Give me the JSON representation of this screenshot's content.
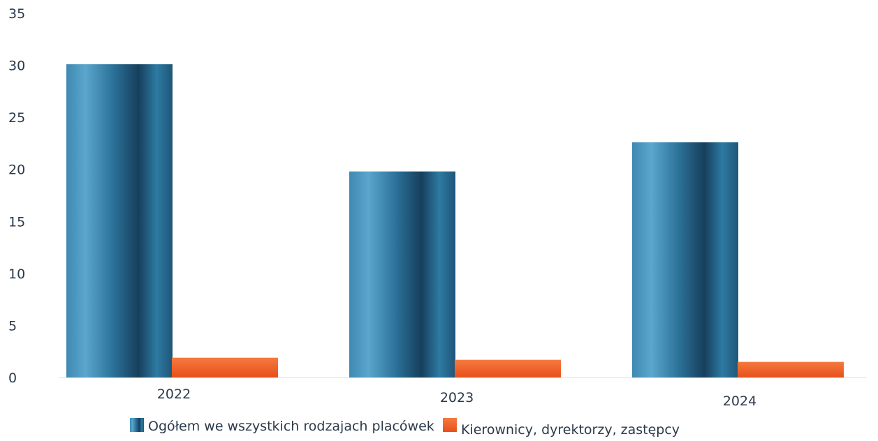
{
  "chart_data": {
    "type": "bar",
    "categories": [
      "2022",
      "2023",
      "2024"
    ],
    "series": [
      {
        "name": "Ogółem we wszystkich rodzajach placówek",
        "values": [
          30.1,
          19.8,
          22.6
        ],
        "color": "#2a6f96"
      },
      {
        "name": "Kierownicy, dyrektorzy, zastępcy",
        "values": [
          1.9,
          1.7,
          1.5
        ],
        "color": "#ef5a24"
      }
    ],
    "y_ticks": [
      "0",
      "5",
      "10",
      "15",
      "20",
      "25",
      "30",
      "35"
    ],
    "ylim": [
      0,
      35
    ],
    "grid": false,
    "legend_position": "bottom"
  }
}
